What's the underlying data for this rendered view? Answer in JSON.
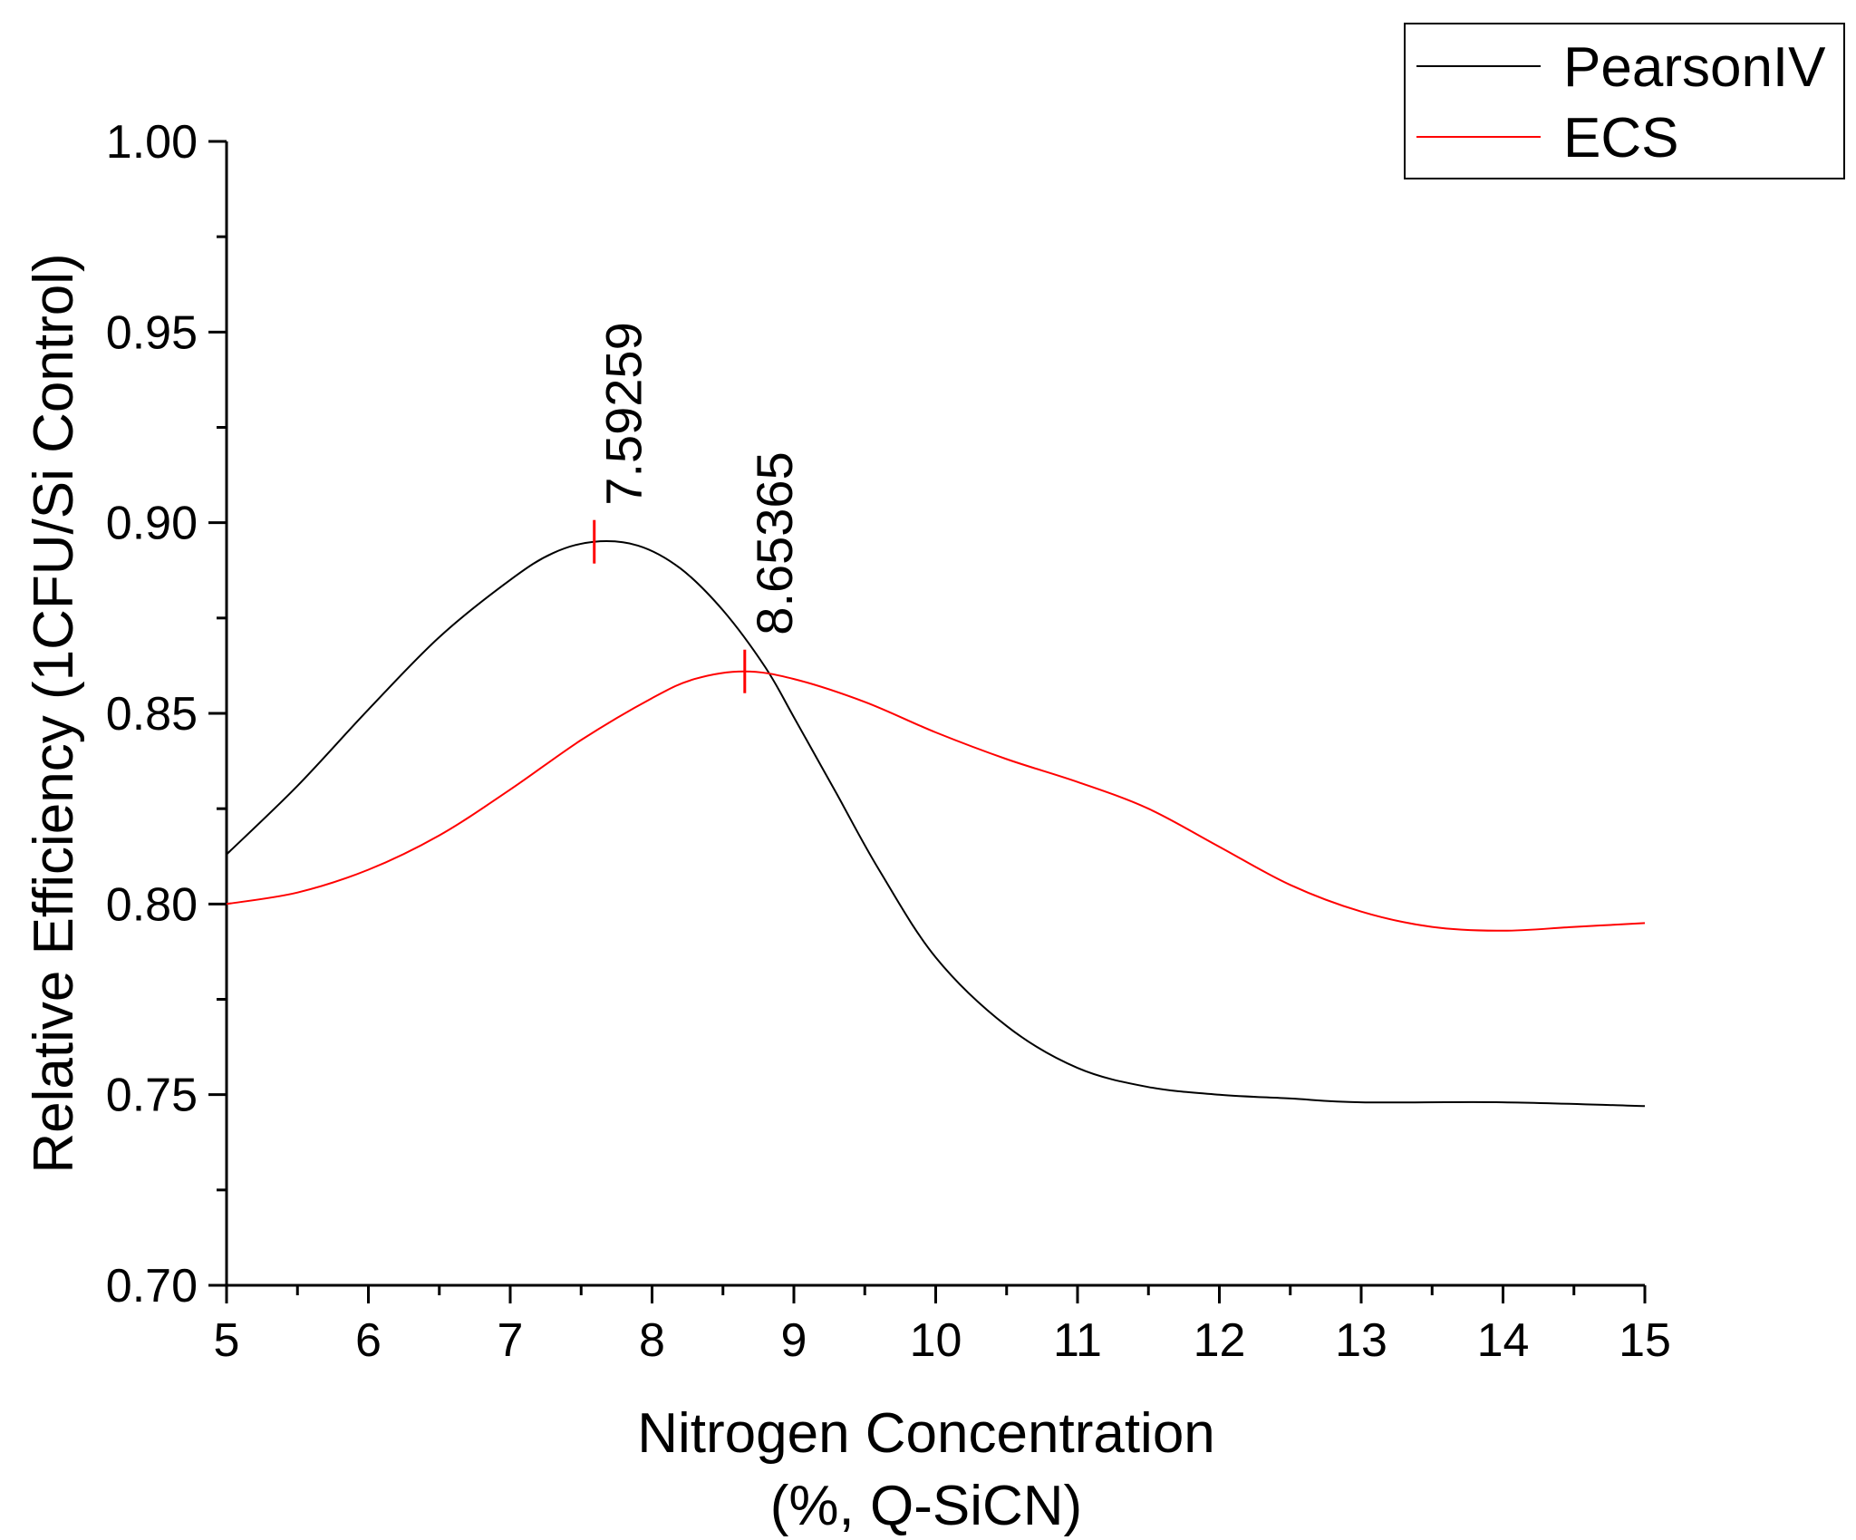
{
  "chart_data": {
    "type": "line",
    "title": "",
    "xlabel": "Nitrogen Concentration",
    "xlabel_line2": "(%, Q-SiCN)",
    "ylabel": "Relative Efficiency (1CFU/Si Control)",
    "xlim": [
      5,
      15
    ],
    "ylim": [
      0.7,
      1.0
    ],
    "x_major_ticks": [
      5,
      6,
      7,
      8,
      9,
      10,
      11,
      12,
      13,
      14,
      15
    ],
    "x_tick_labels": [
      "5",
      "6",
      "7",
      "8",
      "9",
      "10",
      "11",
      "12",
      "13",
      "14",
      "15"
    ],
    "y_major_ticks": [
      0.7,
      0.75,
      0.8,
      0.85,
      0.9,
      0.95,
      1.0
    ],
    "y_tick_labels": [
      "0.70",
      "0.75",
      "0.80",
      "0.85",
      "0.90",
      "0.95",
      "1.00"
    ],
    "grid": false,
    "legend_position": "top-right outside",
    "series": [
      {
        "name": "PearsonIV",
        "color": "#000000",
        "x": [
          5.0,
          5.5,
          6.0,
          6.5,
          7.0,
          7.3,
          7.59,
          7.9,
          8.2,
          8.5,
          8.8,
          9.0,
          9.3,
          9.6,
          10.0,
          10.5,
          11.0,
          11.5,
          12.0,
          12.5,
          13.0,
          14.0,
          15.0
        ],
        "y": [
          0.813,
          0.831,
          0.851,
          0.87,
          0.885,
          0.892,
          0.895,
          0.894,
          0.888,
          0.877,
          0.862,
          0.849,
          0.829,
          0.809,
          0.786,
          0.768,
          0.757,
          0.752,
          0.75,
          0.749,
          0.748,
          0.748,
          0.747
        ]
      },
      {
        "name": "ECS",
        "color": "#ff0000",
        "x": [
          5.0,
          5.5,
          6.0,
          6.5,
          7.0,
          7.5,
          8.0,
          8.3,
          8.65,
          9.0,
          9.5,
          10.0,
          10.5,
          11.0,
          11.5,
          12.0,
          12.5,
          13.0,
          13.5,
          14.0,
          14.5,
          15.0
        ],
        "y": [
          0.8,
          0.803,
          0.809,
          0.818,
          0.83,
          0.843,
          0.854,
          0.859,
          0.861,
          0.859,
          0.853,
          0.845,
          0.838,
          0.832,
          0.825,
          0.815,
          0.805,
          0.798,
          0.794,
          0.793,
          0.794,
          0.795
        ]
      }
    ],
    "annotations": [
      {
        "series": "PearsonIV",
        "x": 7.59259,
        "y": 0.895,
        "label": "7.59259",
        "marker_color": "#ff0000"
      },
      {
        "series": "ECS",
        "x": 8.65365,
        "y": 0.861,
        "label": "8.65365",
        "marker_color": "#ff0000"
      }
    ]
  }
}
